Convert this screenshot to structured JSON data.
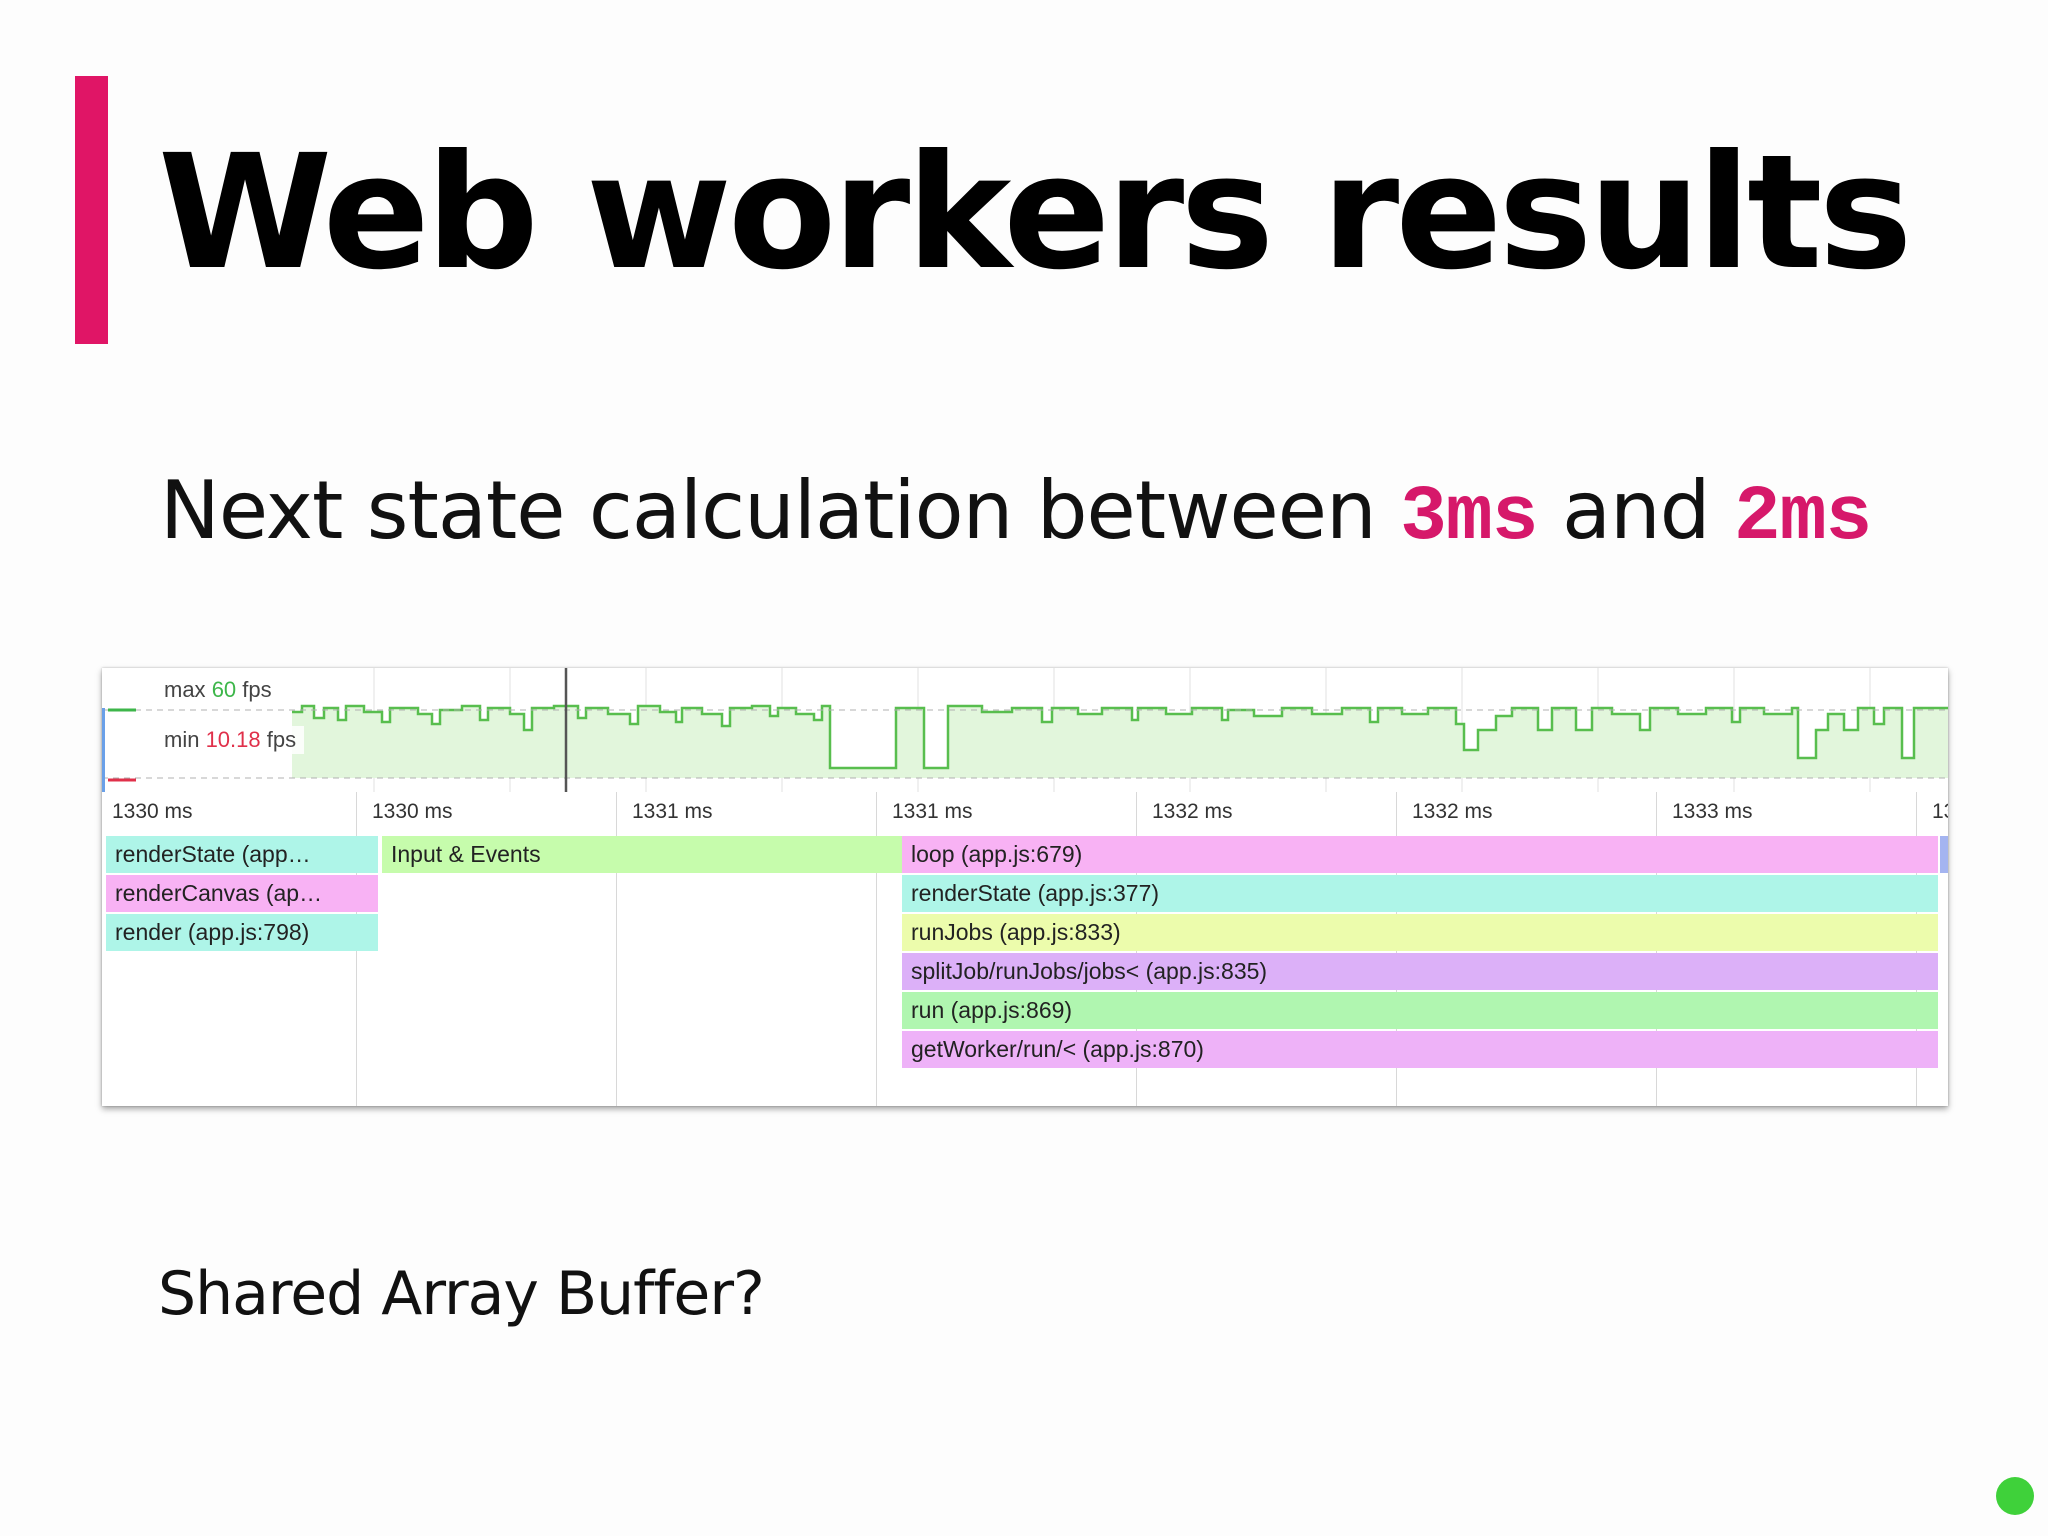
{
  "slide": {
    "title": "Web workers results",
    "subtitle": {
      "prefix": "Next state calculation between ",
      "value1": "3ms",
      "middle": " and ",
      "value2": "2ms"
    },
    "footnote": "Shared Array Buffer?",
    "colors": {
      "accent": "#e01566",
      "highlight_text": "#d6186a",
      "status_dot": "#3fd13a"
    }
  },
  "profiler": {
    "fps": {
      "max_prefix": "max ",
      "max_value": "60",
      "max_unit": " fps",
      "min_prefix": "min ",
      "min_value": "10.18",
      "min_unit": " fps"
    },
    "ticks": [
      "1330 ms",
      "1330 ms",
      "1331 ms",
      "1331 ms",
      "1332 ms",
      "1332 ms",
      "1333 ms",
      "13"
    ],
    "flame": [
      {
        "label": "renderState (app…",
        "color": "cyan"
      },
      {
        "label": "renderCanvas (ap…",
        "color": "pink"
      },
      {
        "label": "render (app.js:798)",
        "color": "cyan"
      },
      {
        "label": "Input & Events",
        "color": "green"
      },
      {
        "label": "loop (app.js:679)",
        "color": "pink"
      },
      {
        "label": "renderState (app.js:377)",
        "color": "cyan"
      },
      {
        "label": "runJobs (app.js:833)",
        "color": "yellow"
      },
      {
        "label": "splitJob/runJobs/jobs< (app.js:835)",
        "color": "purple"
      },
      {
        "label": "run (app.js:869)",
        "color": "mint"
      },
      {
        "label": "getWorker/run/< (app.js:870)",
        "color": "violet"
      }
    ]
  }
}
